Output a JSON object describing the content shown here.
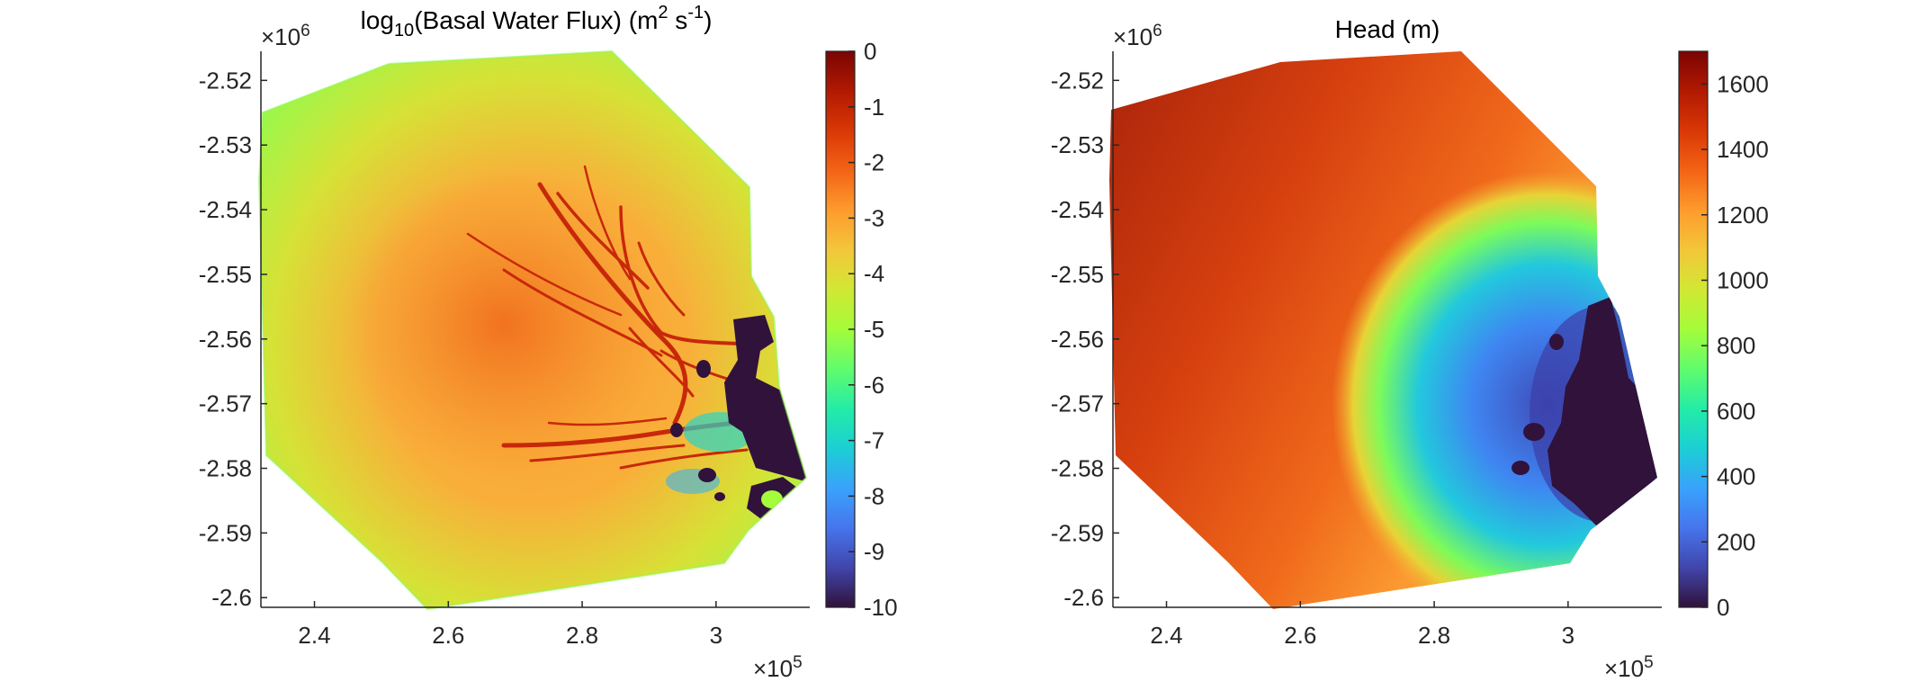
{
  "chart_data": [
    {
      "type": "heatmap",
      "title": {
        "pre": "log",
        "sub": "10",
        "mid": "(Basal Water Flux) (m",
        "sup1": "2",
        "mid2": " s",
        "sup2": "-1",
        "post": ")"
      },
      "xlim": [
        2.32,
        2.62
      ],
      "ylim": [
        -2.602,
        -2.517
      ],
      "x_ticks": [
        "2.4",
        "2.6",
        "2.8",
        "3"
      ],
      "x_tick_values": [
        2.4,
        2.6,
        2.8,
        3.0
      ],
      "y_ticks": [
        "-2.52",
        "-2.53",
        "-2.54",
        "-2.55",
        "-2.56",
        "-2.57",
        "-2.58",
        "-2.59",
        "-2.6"
      ],
      "y_tick_values": [
        -2.52,
        -2.53,
        -2.54,
        -2.55,
        -2.56,
        -2.57,
        -2.58,
        -2.59,
        -2.6
      ],
      "x_exponent": {
        "base": "×10",
        "exp": "5"
      },
      "y_exponent": {
        "base": "×10",
        "exp": "6"
      },
      "colorbar": {
        "min": -10,
        "max": 0,
        "ticks": [
          "0",
          "-1",
          "-2",
          "-3",
          "-4",
          "-5",
          "-6",
          "-7",
          "-8",
          "-9",
          "-10"
        ],
        "tick_values": [
          0,
          -1,
          -2,
          -3,
          -4,
          -5,
          -6,
          -7,
          -8,
          -9,
          -10
        ],
        "colormap": "turbo"
      }
    },
    {
      "type": "heatmap",
      "title": {
        "pre": "Head (m)",
        "sub": "",
        "mid": "",
        "sup1": "",
        "mid2": "",
        "sup2": "",
        "post": ""
      },
      "xlim": [
        2.32,
        2.62
      ],
      "ylim": [
        -2.602,
        -2.517
      ],
      "x_ticks": [
        "2.4",
        "2.6",
        "2.8",
        "3"
      ],
      "x_tick_values": [
        2.4,
        2.6,
        2.8,
        3.0
      ],
      "y_ticks": [
        "-2.52",
        "-2.53",
        "-2.54",
        "-2.55",
        "-2.56",
        "-2.57",
        "-2.58",
        "-2.59",
        "-2.6"
      ],
      "y_tick_values": [
        -2.52,
        -2.53,
        -2.54,
        -2.55,
        -2.56,
        -2.57,
        -2.58,
        -2.59,
        -2.6
      ],
      "x_exponent": {
        "base": "×10",
        "exp": "5"
      },
      "y_exponent": {
        "base": "×10",
        "exp": "6"
      },
      "colorbar": {
        "min": 0,
        "max": 1700,
        "ticks": [
          "1600",
          "1400",
          "1200",
          "1000",
          "800",
          "600",
          "400",
          "200",
          "0"
        ],
        "tick_values": [
          1600,
          1400,
          1200,
          1000,
          800,
          600,
          400,
          200,
          0
        ],
        "colormap": "turbo"
      }
    }
  ],
  "colors": {
    "turbo_stops": [
      "#30123b",
      "#4145ab",
      "#4675ed",
      "#39a2fc",
      "#1bcfd4",
      "#24eca6",
      "#61fc6c",
      "#a4fc3b",
      "#d1e834",
      "#f3c63a",
      "#fe9b2d",
      "#f36315",
      "#d93806",
      "#b11901",
      "#7a0403"
    ]
  }
}
